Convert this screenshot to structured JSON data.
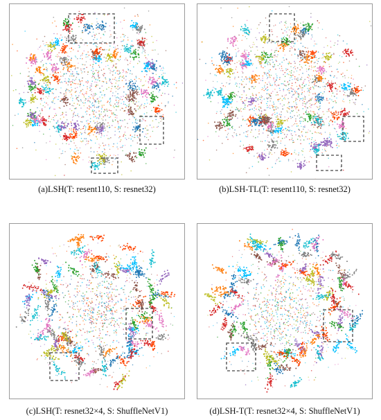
{
  "chart_data": [
    {
      "type": "scatter",
      "caption": "(a)LSH(T: resent110, S: resnet32)",
      "seed": 11,
      "layout_style": "dense",
      "highlight_count": 3
    },
    {
      "type": "scatter",
      "caption": "(b)LSH-TL(T: resent110, S: resnet32)",
      "seed": 23,
      "layout_style": "dense",
      "highlight_count": 3
    },
    {
      "type": "scatter",
      "caption": "(c)LSH(T: resnet32×4, S: ShuffleNetV1)",
      "seed": 37,
      "layout_style": "spread",
      "highlight_count": 2
    },
    {
      "type": "scatter",
      "caption": "(d)LSH-T(T: resnet32×4, S: ShuffleNetV1)",
      "seed": 53,
      "layout_style": "spread",
      "highlight_count": 2
    }
  ],
  "palette": [
    "#1f77b4",
    "#ff7f0e",
    "#2ca02c",
    "#d62728",
    "#9467bd",
    "#8c564b",
    "#e377c2",
    "#7f7f7f",
    "#bcbd22",
    "#17becf",
    "#00bfff",
    "#ff4500"
  ]
}
